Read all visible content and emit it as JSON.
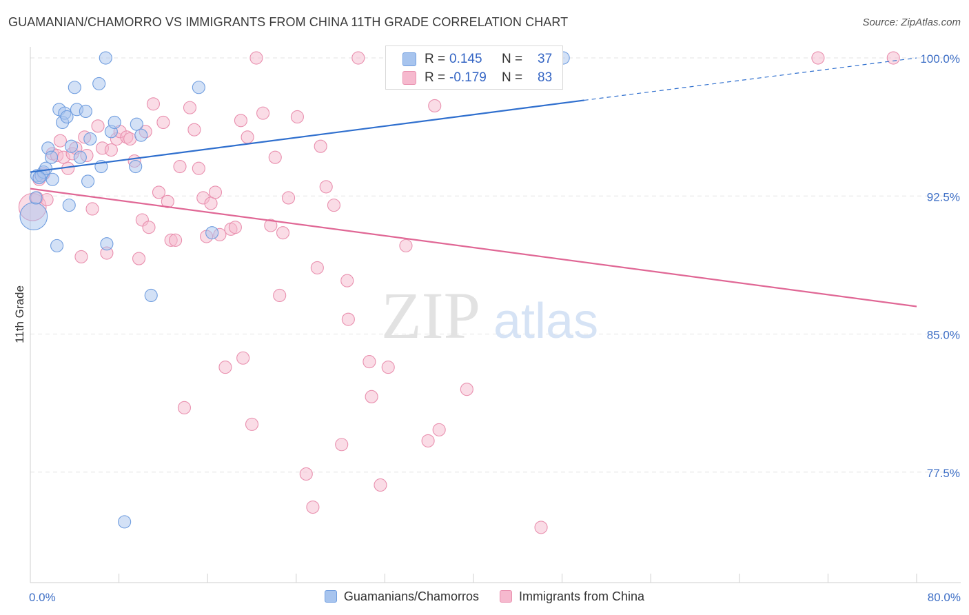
{
  "title": "GUAMANIAN/CHAMORRO VS IMMIGRANTS FROM CHINA 11TH GRADE CORRELATION CHART",
  "source": "Source: ZipAtlas.com",
  "watermark": {
    "zip": "ZIP",
    "atlas": "atlas"
  },
  "colors": {
    "blue_fill": "#a7c4ee",
    "blue_stroke": "#6f9ddf",
    "blue_line": "#2f6fce",
    "pink_fill": "#f6b9ce",
    "pink_stroke": "#e98fae",
    "pink_line": "#e06795",
    "tick_label": "#3e6fc6",
    "grid": "#e3e3e3"
  },
  "stats": {
    "blue": {
      "r_label": "R =",
      "r_value": "0.145",
      "n_label": "N =",
      "n_value": "37"
    },
    "pink": {
      "r_label": "R =",
      "r_value": "-0.179",
      "n_label": "N =",
      "n_value": "83"
    }
  },
  "legend": {
    "blue": "Guamanians/Chamorros",
    "pink": "Immigrants from China"
  },
  "chart_data": {
    "type": "scatter",
    "xlabel": "",
    "ylabel": "11th Grade",
    "xlim": [
      0,
      80
    ],
    "ylim": [
      71.5,
      100.6
    ],
    "x_tick_labels": [
      {
        "value": 0,
        "label": "0.0%"
      },
      {
        "value": 80,
        "label": "80.0%"
      }
    ],
    "y_tick_labels": [
      {
        "value": 100.0,
        "label": "100.0%"
      },
      {
        "value": 92.5,
        "label": "92.5%"
      },
      {
        "value": 85.0,
        "label": "85.0%"
      },
      {
        "value": 77.5,
        "label": "77.5%"
      }
    ],
    "grid": {
      "horizontal": true,
      "vertical": false
    },
    "legend_position": "bottom",
    "series": [
      {
        "name": "Guamanians/Chamorros",
        "color": "blue",
        "trend": {
          "x": [
            0,
            50
          ],
          "y": [
            93.8,
            97.7
          ],
          "dashed_to": [
            80,
            100.0
          ]
        },
        "points": [
          [
            0.3,
            91.4,
            2.2
          ],
          [
            0.5,
            92.4,
            1
          ],
          [
            0.6,
            93.6,
            1
          ],
          [
            1.0,
            93.6,
            1
          ],
          [
            1.2,
            93.8,
            1
          ],
          [
            1.4,
            94.0,
            1
          ],
          [
            1.6,
            95.1,
            1
          ],
          [
            1.9,
            94.6,
            1
          ],
          [
            2.0,
            93.4,
            1
          ],
          [
            2.4,
            89.8,
            1
          ],
          [
            2.6,
            97.2,
            1
          ],
          [
            2.9,
            96.5,
            1
          ],
          [
            3.1,
            97.0,
            1
          ],
          [
            3.3,
            96.8,
            1
          ],
          [
            3.5,
            92.0,
            1
          ],
          [
            3.7,
            95.2,
            1
          ],
          [
            4.0,
            98.4,
            1
          ],
          [
            4.2,
            97.2,
            1
          ],
          [
            4.5,
            94.6,
            1
          ],
          [
            5.0,
            97.1,
            1
          ],
          [
            5.2,
            93.3,
            1
          ],
          [
            5.4,
            95.6,
            1
          ],
          [
            6.2,
            98.6,
            1
          ],
          [
            6.4,
            94.1,
            1
          ],
          [
            6.8,
            100.0,
            1
          ],
          [
            6.9,
            89.9,
            1
          ],
          [
            7.3,
            96.0,
            1
          ],
          [
            7.6,
            96.5,
            1
          ],
          [
            8.5,
            74.8,
            1
          ],
          [
            9.5,
            94.1,
            1
          ],
          [
            9.6,
            96.4,
            1
          ],
          [
            10.0,
            95.8,
            1
          ],
          [
            10.9,
            87.1,
            1
          ],
          [
            15.2,
            98.4,
            1
          ],
          [
            16.4,
            90.5,
            1
          ],
          [
            48.1,
            100.0,
            1
          ],
          [
            0.8,
            93.5,
            1
          ]
        ]
      },
      {
        "name": "Immigrants from China",
        "color": "pink",
        "trend": {
          "x": [
            0,
            80
          ],
          "y": [
            92.9,
            86.5
          ]
        },
        "points": [
          [
            0.2,
            91.9,
            2.2
          ],
          [
            0.6,
            92.4,
            1
          ],
          [
            0.8,
            93.4,
            1
          ],
          [
            1.2,
            93.7,
            1
          ],
          [
            1.5,
            92.3,
            1
          ],
          [
            2.0,
            94.8,
            1
          ],
          [
            2.4,
            94.7,
            1
          ],
          [
            2.7,
            95.5,
            1
          ],
          [
            3.0,
            94.6,
            1
          ],
          [
            3.4,
            94.0,
            1
          ],
          [
            3.8,
            94.8,
            1
          ],
          [
            4.1,
            95.1,
            1
          ],
          [
            4.6,
            89.2,
            1
          ],
          [
            4.9,
            95.7,
            1
          ],
          [
            5.1,
            94.7,
            1
          ],
          [
            5.6,
            91.8,
            1
          ],
          [
            6.1,
            96.3,
            1
          ],
          [
            6.5,
            95.1,
            1
          ],
          [
            6.9,
            89.4,
            1
          ],
          [
            7.3,
            95.0,
            1
          ],
          [
            7.8,
            95.6,
            1
          ],
          [
            8.1,
            96.0,
            1
          ],
          [
            8.7,
            95.7,
            1
          ],
          [
            9.0,
            95.6,
            1
          ],
          [
            9.4,
            94.4,
            1
          ],
          [
            9.8,
            89.1,
            1
          ],
          [
            10.1,
            91.2,
            1
          ],
          [
            10.4,
            96.0,
            1
          ],
          [
            10.7,
            90.8,
            1
          ],
          [
            11.1,
            97.5,
            1
          ],
          [
            11.6,
            92.7,
            1
          ],
          [
            12.0,
            96.5,
            1
          ],
          [
            12.4,
            92.2,
            1
          ],
          [
            12.7,
            90.1,
            1
          ],
          [
            13.1,
            90.1,
            1
          ],
          [
            13.5,
            94.1,
            1
          ],
          [
            13.9,
            81.0,
            1
          ],
          [
            14.4,
            97.3,
            1
          ],
          [
            14.8,
            96.1,
            1
          ],
          [
            15.2,
            94.0,
            1
          ],
          [
            15.6,
            92.4,
            1
          ],
          [
            15.9,
            90.3,
            1
          ],
          [
            16.3,
            92.1,
            1
          ],
          [
            16.7,
            92.7,
            1
          ],
          [
            17.1,
            90.4,
            1
          ],
          [
            17.6,
            83.2,
            1
          ],
          [
            18.1,
            90.7,
            1
          ],
          [
            18.5,
            90.8,
            1
          ],
          [
            19.0,
            96.6,
            1
          ],
          [
            19.2,
            83.7,
            1
          ],
          [
            19.6,
            95.7,
            1
          ],
          [
            20.0,
            80.1,
            1
          ],
          [
            20.4,
            100.0,
            1
          ],
          [
            21.0,
            97.0,
            1
          ],
          [
            21.7,
            90.9,
            1
          ],
          [
            22.1,
            94.6,
            1
          ],
          [
            22.5,
            87.1,
            1
          ],
          [
            22.8,
            90.5,
            1
          ],
          [
            23.3,
            92.4,
            1
          ],
          [
            24.1,
            96.8,
            1
          ],
          [
            24.9,
            77.4,
            1
          ],
          [
            25.5,
            75.6,
            1
          ],
          [
            25.9,
            88.6,
            1
          ],
          [
            26.2,
            95.2,
            1
          ],
          [
            26.7,
            93.0,
            1
          ],
          [
            27.4,
            92.0,
            1
          ],
          [
            28.1,
            79.0,
            1
          ],
          [
            28.6,
            87.9,
            1
          ],
          [
            28.7,
            85.8,
            1
          ],
          [
            29.6,
            100.0,
            1
          ],
          [
            30.6,
            83.5,
            1
          ],
          [
            30.8,
            81.6,
            1
          ],
          [
            31.6,
            76.8,
            1
          ],
          [
            32.3,
            83.2,
            1
          ],
          [
            33.0,
            100.0,
            1
          ],
          [
            33.9,
            89.8,
            1
          ],
          [
            35.9,
            79.2,
            1
          ],
          [
            36.5,
            97.4,
            1
          ],
          [
            36.9,
            79.8,
            1
          ],
          [
            39.4,
            82.0,
            1
          ],
          [
            46.1,
            74.5,
            1
          ],
          [
            71.1,
            100.0,
            1
          ],
          [
            77.9,
            100.0,
            1
          ]
        ]
      }
    ]
  }
}
